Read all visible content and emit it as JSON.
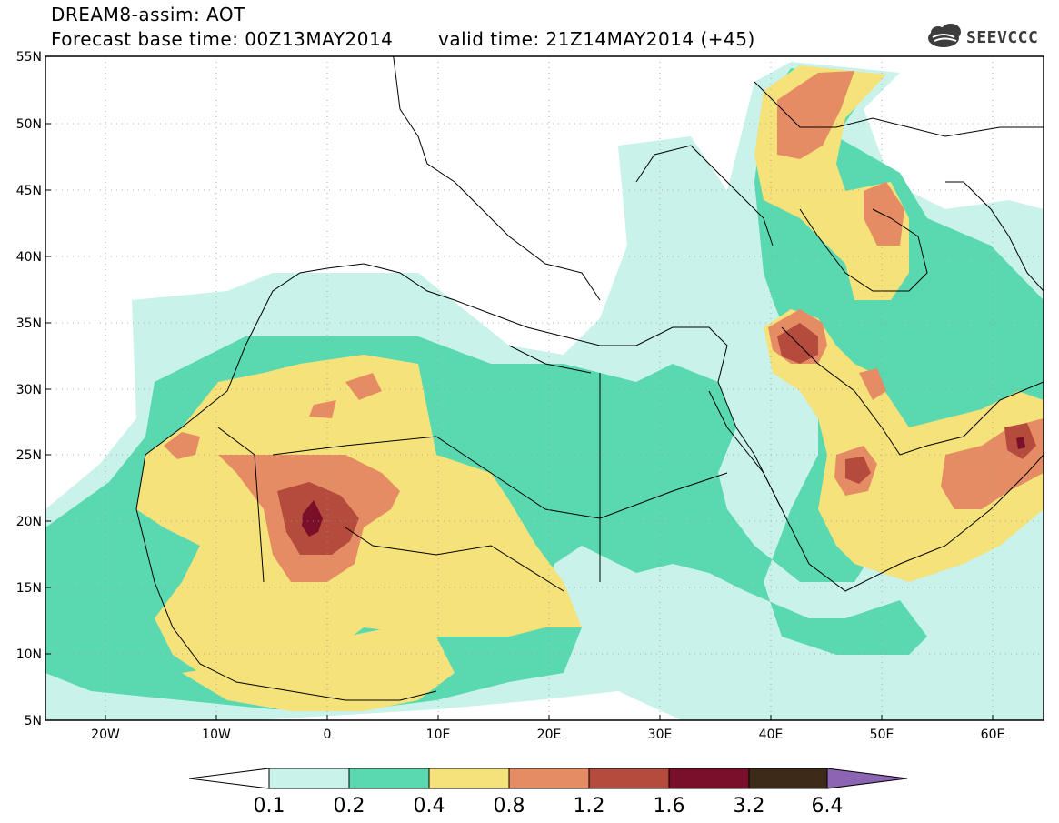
{
  "title": {
    "line1": "DREAM8-assim: AOT",
    "base_time": "Forecast base time: 00Z13MAY2014",
    "valid_time": "valid time: 21Z14MAY2014 (+45)"
  },
  "logo": {
    "text": "SEEVCCC",
    "icon": "cloud-logo-icon"
  },
  "map": {
    "lat_labels": [
      "55N",
      "50N",
      "45N",
      "40N",
      "35N",
      "30N",
      "25N",
      "20N",
      "15N",
      "10N",
      "5N"
    ],
    "lon_labels": [
      "20W",
      "10W",
      "0",
      "10E",
      "20E",
      "30E",
      "40E",
      "50E",
      "60E"
    ],
    "lon_range": [
      -25,
      65
    ],
    "lat_range": [
      5,
      55
    ]
  },
  "colorbar": {
    "labels": [
      "0.1",
      "0.2",
      "0.4",
      "0.8",
      "1.2",
      "1.6",
      "3.2",
      "6.4"
    ],
    "colors": [
      "#ffffff",
      "#c8f2ea",
      "#5ad9b0",
      "#f5e27a",
      "#e68c64",
      "#b44b3c",
      "#7a0f2a",
      "#3d2a18",
      "#8c64b4"
    ]
  }
}
